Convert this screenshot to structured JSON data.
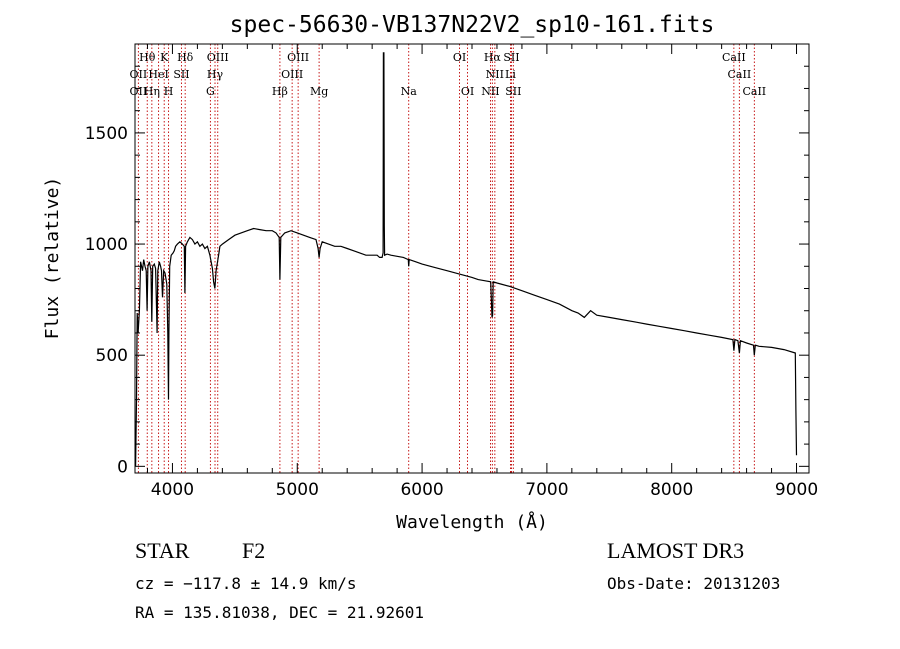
{
  "chart_data": {
    "type": "line",
    "title": "spec-56630-VB137N22V2_sp10-161.fits",
    "xlabel": "Wavelength (Å)",
    "ylabel": "Flux (relative)",
    "xlim": [
      3700,
      9100
    ],
    "ylim": [
      -30,
      1900
    ],
    "x_ticks": [
      {
        "value": 4000,
        "label": "4000"
      },
      {
        "value": 5000,
        "label": "5000"
      },
      {
        "value": 6000,
        "label": "6000"
      },
      {
        "value": 7000,
        "label": "7000"
      },
      {
        "value": 8000,
        "label": "8000"
      },
      {
        "value": 9000,
        "label": "9000"
      }
    ],
    "y_ticks": [
      {
        "value": 0,
        "label": "0"
      },
      {
        "value": 500,
        "label": "500"
      },
      {
        "value": 1000,
        "label": "1000"
      },
      {
        "value": 1500,
        "label": "1500"
      }
    ],
    "x_minor_step": 200,
    "y_minor_step": 100,
    "series": [
      {
        "name": "spectrum",
        "points": [
          [
            3705,
            0
          ],
          [
            3712,
            300
          ],
          [
            3718,
            690
          ],
          [
            3725,
            600
          ],
          [
            3735,
            700
          ],
          [
            3745,
            920
          ],
          [
            3760,
            880
          ],
          [
            3770,
            930
          ],
          [
            3780,
            900
          ],
          [
            3790,
            880
          ],
          [
            3797,
            700
          ],
          [
            3803,
            900
          ],
          [
            3815,
            920
          ],
          [
            3828,
            880
          ],
          [
            3835,
            650
          ],
          [
            3842,
            900
          ],
          [
            3855,
            910
          ],
          [
            3865,
            890
          ],
          [
            3877,
            600
          ],
          [
            3883,
            880
          ],
          [
            3895,
            920
          ],
          [
            3905,
            900
          ],
          [
            3912,
            880
          ],
          [
            3920,
            760
          ],
          [
            3930,
            880
          ],
          [
            3940,
            870
          ],
          [
            3955,
            820
          ],
          [
            3963,
            600
          ],
          [
            3968,
            300
          ],
          [
            3972,
            600
          ],
          [
            3978,
            900
          ],
          [
            3990,
            950
          ],
          [
            4005,
            960
          ],
          [
            4015,
            970
          ],
          [
            4025,
            990
          ],
          [
            4040,
            1000
          ],
          [
            4060,
            1010
          ],
          [
            4080,
            1000
          ],
          [
            4095,
            990
          ],
          [
            4100,
            780
          ],
          [
            4105,
            990
          ],
          [
            4120,
            1010
          ],
          [
            4140,
            1030
          ],
          [
            4160,
            1020
          ],
          [
            4180,
            1000
          ],
          [
            4200,
            1010
          ],
          [
            4220,
            990
          ],
          [
            4240,
            1000
          ],
          [
            4260,
            980
          ],
          [
            4280,
            990
          ],
          [
            4300,
            950
          ],
          [
            4320,
            890
          ],
          [
            4330,
            830
          ],
          [
            4340,
            800
          ],
          [
            4350,
            880
          ],
          [
            4370,
            950
          ],
          [
            4380,
            990
          ],
          [
            4400,
            1000
          ],
          [
            4450,
            1020
          ],
          [
            4500,
            1040
          ],
          [
            4550,
            1050
          ],
          [
            4600,
            1060
          ],
          [
            4650,
            1070
          ],
          [
            4700,
            1065
          ],
          [
            4750,
            1060
          ],
          [
            4800,
            1060
          ],
          [
            4830,
            1050
          ],
          [
            4855,
            1030
          ],
          [
            4861,
            840
          ],
          [
            4868,
            1030
          ],
          [
            4900,
            1050
          ],
          [
            4950,
            1060
          ],
          [
            5000,
            1050
          ],
          [
            5050,
            1040
          ],
          [
            5100,
            1030
          ],
          [
            5150,
            1020
          ],
          [
            5167,
            980
          ],
          [
            5175,
            940
          ],
          [
            5183,
            980
          ],
          [
            5200,
            1010
          ],
          [
            5250,
            1000
          ],
          [
            5300,
            990
          ],
          [
            5350,
            990
          ],
          [
            5400,
            980
          ],
          [
            5450,
            970
          ],
          [
            5500,
            960
          ],
          [
            5550,
            950
          ],
          [
            5600,
            950
          ],
          [
            5640,
            950
          ],
          [
            5660,
            940
          ],
          [
            5680,
            940
          ],
          [
            5688,
            960
          ],
          [
            5690,
            1860
          ],
          [
            5694,
            1860
          ],
          [
            5697,
            1080
          ],
          [
            5700,
            950
          ],
          [
            5720,
            955
          ],
          [
            5750,
            950
          ],
          [
            5800,
            945
          ],
          [
            5850,
            940
          ],
          [
            5890,
            930
          ],
          [
            5893,
            900
          ],
          [
            5897,
            930
          ],
          [
            5950,
            920
          ],
          [
            6000,
            910
          ],
          [
            6100,
            895
          ],
          [
            6200,
            880
          ],
          [
            6300,
            865
          ],
          [
            6400,
            850
          ],
          [
            6450,
            840
          ],
          [
            6500,
            835
          ],
          [
            6550,
            830
          ],
          [
            6560,
            670
          ],
          [
            6565,
            680
          ],
          [
            6570,
            830
          ],
          [
            6600,
            825
          ],
          [
            6700,
            810
          ],
          [
            6800,
            790
          ],
          [
            6900,
            770
          ],
          [
            7000,
            750
          ],
          [
            7100,
            730
          ],
          [
            7200,
            700
          ],
          [
            7250,
            690
          ],
          [
            7300,
            670
          ],
          [
            7350,
            700
          ],
          [
            7400,
            680
          ],
          [
            7500,
            670
          ],
          [
            7600,
            660
          ],
          [
            7700,
            650
          ],
          [
            7800,
            640
          ],
          [
            7900,
            630
          ],
          [
            8000,
            620
          ],
          [
            8100,
            610
          ],
          [
            8200,
            600
          ],
          [
            8300,
            590
          ],
          [
            8400,
            580
          ],
          [
            8490,
            570
          ],
          [
            8498,
            520
          ],
          [
            8506,
            570
          ],
          [
            8530,
            565
          ],
          [
            8542,
            510
          ],
          [
            8550,
            565
          ],
          [
            8600,
            555
          ],
          [
            8655,
            545
          ],
          [
            8662,
            500
          ],
          [
            8670,
            545
          ],
          [
            8700,
            540
          ],
          [
            8800,
            535
          ],
          [
            8900,
            525
          ],
          [
            8990,
            510
          ],
          [
            8995,
            250
          ],
          [
            9000,
            50
          ]
        ]
      }
    ],
    "lines": [
      {
        "name": "OII",
        "x": 3727
      },
      {
        "name": "Hθ",
        "x": 3798
      },
      {
        "name": "Hη",
        "x": 3835
      },
      {
        "name": "HeI",
        "x": 3889
      },
      {
        "name": "K",
        "x": 3934
      },
      {
        "name": "H",
        "x": 3969
      },
      {
        "name": "SII",
        "x": 4072
      },
      {
        "name": "Hδ",
        "x": 4102
      },
      {
        "name": "G",
        "x": 4304
      },
      {
        "name": "Hγ",
        "x": 4341
      },
      {
        "name": "OIII",
        "x": 4363
      },
      {
        "name": "Hβ",
        "x": 4861
      },
      {
        "name": "OIII",
        "x": 4959
      },
      {
        "name": "OIII",
        "x": 5007
      },
      {
        "name": "Mg",
        "x": 5175
      },
      {
        "name": "Na",
        "x": 5893
      },
      {
        "name": "OI",
        "x": 6300
      },
      {
        "name": "OI",
        "x": 6364
      },
      {
        "name": "NII",
        "x": 6548
      },
      {
        "name": "Hα",
        "x": 6563
      },
      {
        "name": "NII",
        "x": 6583
      },
      {
        "name": "Li",
        "x": 6708
      },
      {
        "name": "SII",
        "x": 6716
      },
      {
        "name": "SII",
        "x": 6731
      },
      {
        "name": "CaII",
        "x": 8498
      },
      {
        "name": "CaII",
        "x": 8542
      },
      {
        "name": "CaII",
        "x": 8662
      }
    ],
    "labels": [
      {
        "text": "Hθ",
        "x": 3798,
        "row": 1
      },
      {
        "text": "K",
        "x": 3934,
        "row": 1
      },
      {
        "text": "Hδ",
        "x": 4102,
        "row": 1
      },
      {
        "text": "OIII",
        "x": 4363,
        "row": 1
      },
      {
        "text": "OIII",
        "x": 5007,
        "row": 1
      },
      {
        "text": "OI",
        "x": 6300,
        "row": 1
      },
      {
        "text": "Hα",
        "x": 6563,
        "row": 1
      },
      {
        "text": "SII",
        "x": 6716,
        "row": 1
      },
      {
        "text": "CaII",
        "x": 8498,
        "row": 1
      },
      {
        "text": "OII",
        "x": 3727,
        "row": 2
      },
      {
        "text": "HeI",
        "x": 3889,
        "row": 2
      },
      {
        "text": "SII",
        "x": 4072,
        "row": 2
      },
      {
        "text": "Hγ",
        "x": 4341,
        "row": 2
      },
      {
        "text": "OIII",
        "x": 4959,
        "row": 2
      },
      {
        "text": "NII",
        "x": 6583,
        "row": 2
      },
      {
        "text": "Li",
        "x": 6708,
        "row": 2
      },
      {
        "text": "CaII",
        "x": 8542,
        "row": 2
      },
      {
        "text": "OII",
        "x": 3727,
        "row": 3
      },
      {
        "text": "Hη",
        "x": 3835,
        "row": 3
      },
      {
        "text": "H",
        "x": 3969,
        "row": 3
      },
      {
        "text": "G",
        "x": 4304,
        "row": 3
      },
      {
        "text": "Hβ",
        "x": 4861,
        "row": 3
      },
      {
        "text": "Mg",
        "x": 5175,
        "row": 3
      },
      {
        "text": "Na",
        "x": 5893,
        "row": 3
      },
      {
        "text": "OI",
        "x": 6364,
        "row": 3
      },
      {
        "text": "NII",
        "x": 6548,
        "row": 3
      },
      {
        "text": "SII",
        "x": 6731,
        "row": 3
      },
      {
        "text": "CaII",
        "x": 8662,
        "row": 3
      }
    ]
  },
  "info": {
    "object_class": "STAR",
    "subclass": "F2",
    "survey": "LAMOST DR3",
    "cz": "cz = −117.8 ± 14.9 km/s",
    "obs_date": "Obs-Date: 20131203",
    "coords": "RA = 135.81038, DEC =  21.92601"
  }
}
